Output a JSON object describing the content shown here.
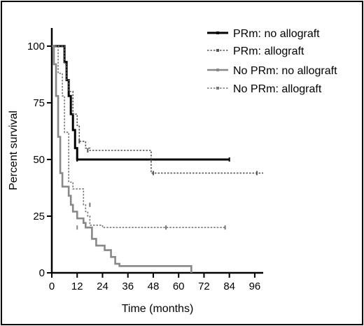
{
  "chart_data": {
    "type": "line",
    "subtype": "kaplan-meier step",
    "title": "",
    "xlabel": "Time (months)",
    "ylabel": "Percent survival",
    "xlim": [
      0,
      100
    ],
    "ylim": [
      0,
      108
    ],
    "x_ticks": [
      0,
      12,
      24,
      36,
      48,
      60,
      72,
      84,
      96
    ],
    "y_ticks": [
      0,
      25,
      50,
      75,
      100
    ],
    "legend_position": "top-right",
    "grid": false,
    "series": [
      {
        "name": "PRm: no allograft",
        "color": "#000000",
        "style": "solid-thick",
        "steps": [
          [
            0,
            100
          ],
          [
            5,
            100
          ],
          [
            6,
            93
          ],
          [
            7,
            85
          ],
          [
            8,
            78
          ],
          [
            9,
            70
          ],
          [
            10,
            63
          ],
          [
            11,
            55
          ],
          [
            12,
            50
          ],
          [
            84,
            50
          ]
        ],
        "censors": [
          [
            12,
            50
          ],
          [
            84,
            50
          ]
        ]
      },
      {
        "name": "PRm: allograft",
        "color": "#555555",
        "style": "dotted",
        "steps": [
          [
            0,
            100
          ],
          [
            5,
            100
          ],
          [
            6,
            92
          ],
          [
            7,
            85
          ],
          [
            8,
            80
          ],
          [
            10,
            70
          ],
          [
            12,
            65
          ],
          [
            13,
            58
          ],
          [
            16,
            55
          ],
          [
            18,
            54
          ],
          [
            47,
            54
          ],
          [
            47,
            44
          ],
          [
            100,
            44
          ]
        ],
        "censors": [
          [
            13,
            58
          ],
          [
            17,
            54
          ],
          [
            48,
            44
          ],
          [
            97,
            44
          ]
        ]
      },
      {
        "name": "No PRm: no allograft",
        "color": "#888888",
        "style": "solid",
        "steps": [
          [
            0,
            100
          ],
          [
            1,
            92
          ],
          [
            2,
            78
          ],
          [
            3,
            60
          ],
          [
            4,
            44
          ],
          [
            5,
            38
          ],
          [
            7,
            38
          ],
          [
            8,
            34
          ],
          [
            9,
            30
          ],
          [
            10,
            27
          ],
          [
            12,
            24
          ],
          [
            15,
            22
          ],
          [
            16,
            20
          ],
          [
            18,
            20
          ],
          [
            19,
            15
          ],
          [
            21,
            12
          ],
          [
            25,
            10
          ],
          [
            28,
            7
          ],
          [
            30,
            4
          ],
          [
            32,
            3
          ],
          [
            66,
            3
          ],
          [
            66,
            0
          ]
        ],
        "censors": [
          [
            12,
            20
          ]
        ]
      },
      {
        "name": "No PRm: allograft",
        "color": "#777777",
        "style": "dotted",
        "steps": [
          [
            0,
            100
          ],
          [
            3,
            88
          ],
          [
            5,
            78
          ],
          [
            6,
            62
          ],
          [
            8,
            40
          ],
          [
            10,
            37
          ],
          [
            14,
            37
          ],
          [
            15,
            30
          ],
          [
            16,
            27
          ],
          [
            17,
            25
          ],
          [
            18,
            21
          ],
          [
            24,
            21
          ],
          [
            24,
            20
          ],
          [
            82,
            20
          ]
        ],
        "censors": [
          [
            18,
            30
          ],
          [
            54,
            20
          ],
          [
            82,
            20
          ]
        ]
      }
    ]
  }
}
